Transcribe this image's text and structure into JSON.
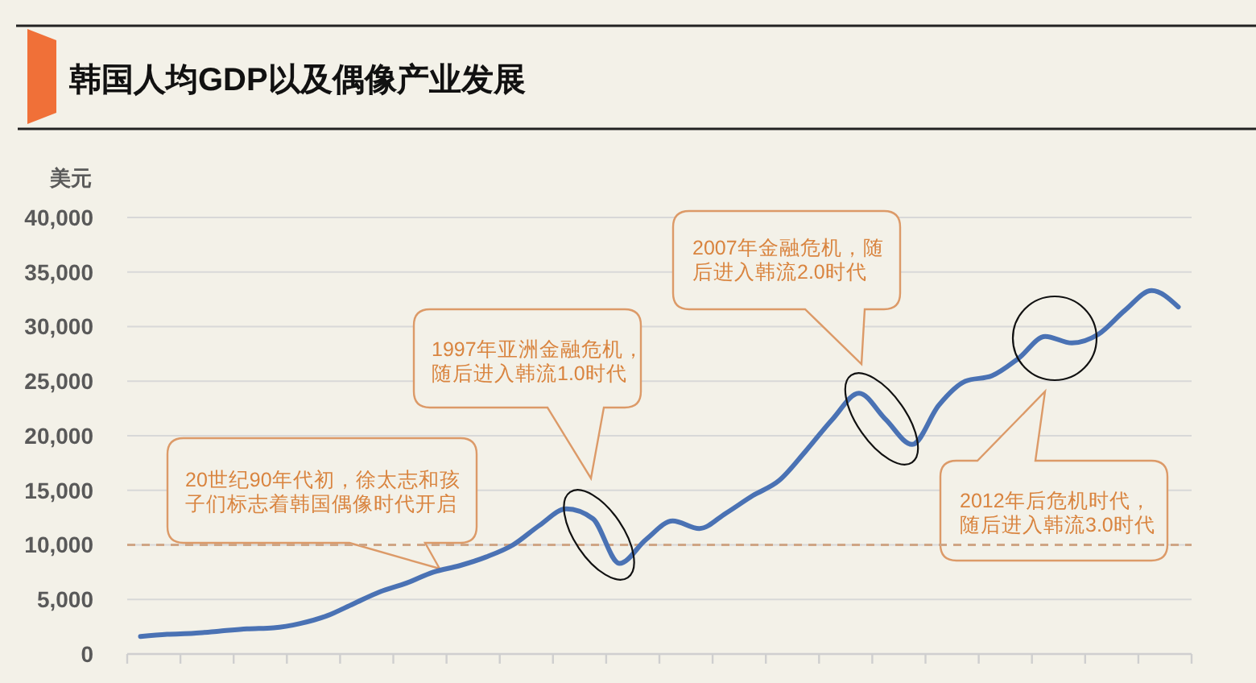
{
  "chart_data": {
    "type": "line",
    "title": "韩国人均GDP以及偶像产业发展",
    "ylabel": "美元",
    "categories": [
      null,
      null,
      null,
      null,
      null,
      null,
      null,
      null,
      null,
      null,
      null,
      null,
      null,
      null,
      null,
      null,
      null,
      null,
      null,
      null,
      null,
      null,
      null,
      null,
      null,
      null,
      null,
      null,
      null,
      null,
      null,
      null,
      null,
      null,
      null,
      null,
      null,
      null,
      null,
      null
    ],
    "series": [
      {
        "color": "#4a72b4",
        "values": [
          1600,
          1800,
          1900,
          2100,
          2300,
          2400,
          2800,
          3500,
          4600,
          5700,
          6500,
          7500,
          8100,
          8900,
          10000,
          11800,
          13300,
          12400,
          8300,
          10500,
          12200,
          11500,
          12900,
          14500,
          15900,
          18600,
          21500,
          23900,
          21500,
          19200,
          22800,
          25000,
          25500,
          27100,
          29100,
          28500,
          29300,
          31500,
          33300,
          31800
        ]
      }
    ],
    "ylim": [
      0,
      40000
    ],
    "yticks": [
      0,
      {
        "value": 5000,
        "label": "5,000"
      },
      {
        "value": 10000,
        "label": "10,000"
      },
      {
        "value": 15000,
        "label": "15,000"
      },
      {
        "value": 20000,
        "label": "20,000"
      },
      {
        "value": 25000,
        "label": "25,000"
      },
      {
        "value": 30000,
        "label": "30,000"
      },
      {
        "value": 35000,
        "label": "35,000"
      },
      {
        "value": 40000,
        "label": "40,000"
      }
    ],
    "grid": "y",
    "tick_labels": "y",
    "ref_lines": [
      {
        "axis": "y",
        "value": 10000,
        "color": "#cfa585",
        "line_style": "dashed"
      }
    ],
    "annotations": [
      "20世纪90年代初，徐太志和孩子们标志着韩国偶像时代开启",
      "1997年亚洲金融危机，随后进入韩流1.0时代",
      "2007年金融危机，随后进入韩流2.0时代",
      "2012年后危机时代，随后进入韩流3.0时代"
    ]
  }
}
